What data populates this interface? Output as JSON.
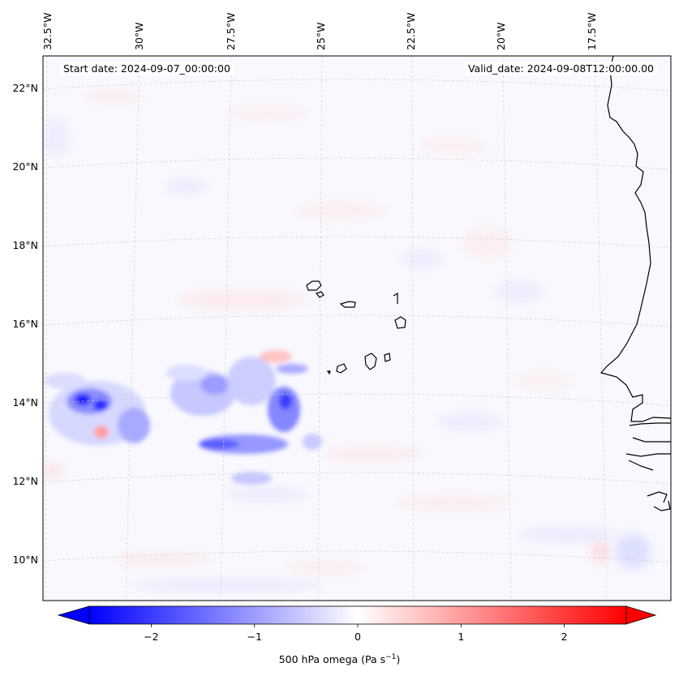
{
  "header": {
    "start_date": "Start date: 2024-09-07_00:00:00",
    "valid_date": "Valid_date: 2024-09-08T12:00:00.00"
  },
  "map": {
    "lon_labels": [
      "32.5°W",
      "30°W",
      "27.5°W",
      "25°W",
      "22.5°W",
      "20°W",
      "17.5°W"
    ],
    "lat_labels": [
      "22°N",
      "20°N",
      "18°N",
      "16°N",
      "14°N",
      "12°N",
      "10°N"
    ],
    "coastline_color": "#000000",
    "gridline_color": "#c8c8c8"
  },
  "colorbar": {
    "title": "500 hPa omega (Pa s",
    "title_sup": "−1",
    "title_end": ")",
    "ticks": [
      "−2",
      "−1",
      "0",
      "1",
      "2"
    ],
    "range": [
      -2.6,
      2.6
    ],
    "color_min": "#0000ff",
    "color_mid": "#ffffff",
    "color_max": "#ff0000"
  }
}
